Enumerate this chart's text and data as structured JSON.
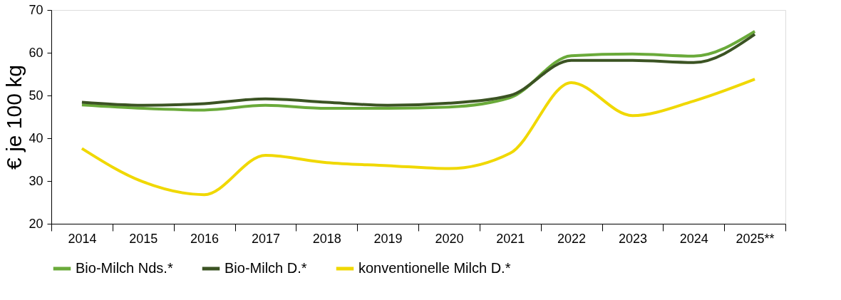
{
  "chart_data": {
    "type": "line",
    "ylabel": "€ je 100 kg",
    "categories": [
      "2014",
      "2015",
      "2016",
      "2017",
      "2018",
      "2019",
      "2020",
      "2021",
      "2022",
      "2023",
      "2024",
      "2025**"
    ],
    "series": [
      {
        "name": "Bio-Milch Nds.*",
        "color": "#6aaa3a",
        "values": [
          47.8,
          47.0,
          46.6,
          47.7,
          47.0,
          47.0,
          47.3,
          49.5,
          59.3,
          59.7,
          59.2,
          65.0
        ]
      },
      {
        "name": "Bio-Milch D.*",
        "color": "#3b5323",
        "values": [
          48.4,
          47.7,
          48.1,
          49.2,
          48.4,
          47.7,
          48.2,
          50.0,
          58.2,
          58.2,
          57.7,
          64.3
        ]
      },
      {
        "name": "konventionelle Milch D.*",
        "color": "#f0d800",
        "values": [
          37.6,
          29.8,
          26.8,
          36.0,
          34.3,
          33.6,
          32.9,
          36.5,
          53.0,
          45.3,
          48.7,
          53.8
        ]
      }
    ],
    "ylim": [
      20,
      70
    ],
    "yticks": [
      20,
      30,
      40,
      50,
      60,
      70
    ],
    "grid": false,
    "legend": "bottom",
    "marker": "none",
    "line_style": "solid"
  }
}
